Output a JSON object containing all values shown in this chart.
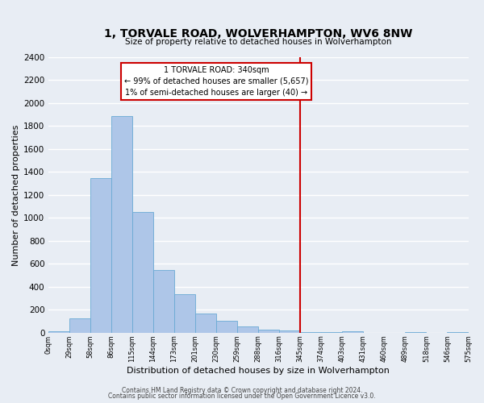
{
  "title": "1, TORVALE ROAD, WOLVERHAMPTON, WV6 8NW",
  "subtitle": "Size of property relative to detached houses in Wolverhampton",
  "xlabel": "Distribution of detached houses by size in Wolverhampton",
  "ylabel": "Number of detached properties",
  "bar_values": [
    10,
    125,
    1350,
    1890,
    1050,
    545,
    335,
    165,
    105,
    58,
    25,
    20,
    8,
    5,
    12,
    0,
    0,
    5,
    0,
    8
  ],
  "bin_labels": [
    "0sqm",
    "29sqm",
    "58sqm",
    "86sqm",
    "115sqm",
    "144sqm",
    "173sqm",
    "201sqm",
    "230sqm",
    "259sqm",
    "288sqm",
    "316sqm",
    "345sqm",
    "374sqm",
    "403sqm",
    "431sqm",
    "460sqm",
    "489sqm",
    "518sqm",
    "546sqm",
    "575sqm"
  ],
  "bar_color": "#aec6e8",
  "bar_edgecolor": "#6aaad4",
  "background_color": "#e8edf4",
  "grid_color": "#ffffff",
  "marker_color": "#cc0000",
  "annotation_title": "1 TORVALE ROAD: 340sqm",
  "annotation_line1": "← 99% of detached houses are smaller (5,657)",
  "annotation_line2": "1% of semi-detached houses are larger (40) →",
  "ylim": [
    0,
    2400
  ],
  "yticks": [
    0,
    200,
    400,
    600,
    800,
    1000,
    1200,
    1400,
    1600,
    1800,
    2000,
    2200,
    2400
  ],
  "footer1": "Contains HM Land Registry data © Crown copyright and database right 2024.",
  "footer2": "Contains public sector information licensed under the Open Government Licence v3.0."
}
